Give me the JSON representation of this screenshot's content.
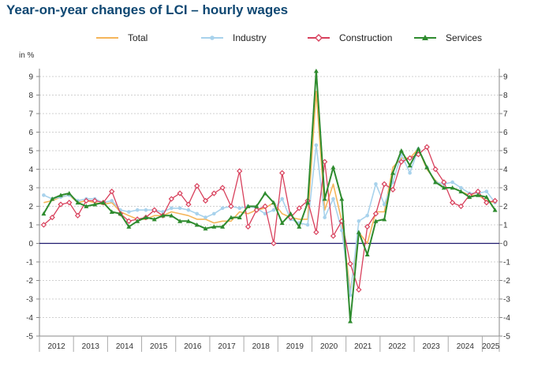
{
  "title": "Year-on-year changes of LCI – hourly wages",
  "colors": {
    "title": "#0e4772",
    "zero_line": "#1f1a6e",
    "grid": "#d0d0d0"
  },
  "chart_data": {
    "type": "line",
    "title": "Year-on-year changes of LCI – hourly wages",
    "ylabel": "in %",
    "ylim": [
      -5,
      9
    ],
    "yticks": [
      "-5",
      "-4",
      "-3",
      "-2",
      "-1",
      "0",
      "1",
      "2",
      "3",
      "4",
      "5",
      "6",
      "7",
      "8",
      "9"
    ],
    "x_start_quarter": "2012Q1",
    "x_end_quarter": "2025Q2",
    "year_labels": [
      "2012",
      "2013",
      "2014",
      "2015",
      "2016",
      "2017",
      "2018",
      "2019",
      "2020",
      "2021",
      "2022",
      "2023",
      "2024",
      "2025"
    ],
    "grid": true,
    "legend_position": "top",
    "series": [
      {
        "name": "Total",
        "color": "#f5b55a",
        "marker": "none",
        "values": [
          2.2,
          2.3,
          2.5,
          2.6,
          2.2,
          2.3,
          2.2,
          2.1,
          2.2,
          1.7,
          1.5,
          1.3,
          1.3,
          1.5,
          1.5,
          1.7,
          1.6,
          1.5,
          1.3,
          1.3,
          1.1,
          1.2,
          1.2,
          1.7,
          1.6,
          1.8,
          1.9,
          2.2,
          1.6,
          1.4,
          1.3,
          1.3,
          8.2,
          1.8,
          3.2,
          1.2,
          -2.6,
          0.6,
          0.0,
          1.7,
          1.7,
          4.1,
          4.6,
          4.6,
          5.1,
          4.0,
          3.4,
          3.0,
          3.0,
          2.8,
          2.6,
          2.6,
          2.3,
          2.2
        ]
      },
      {
        "name": "Industry",
        "color": "#a8d2ec",
        "marker": "circle",
        "values": [
          2.6,
          2.4,
          2.5,
          2.6,
          2.3,
          2.4,
          2.4,
          2.2,
          2.3,
          1.8,
          1.7,
          1.8,
          1.8,
          1.8,
          1.7,
          1.9,
          1.9,
          1.8,
          1.6,
          1.4,
          1.6,
          1.9,
          2.0,
          1.9,
          2.0,
          1.9,
          1.6,
          1.8,
          2.4,
          1.3,
          1.1,
          1.0,
          5.3,
          1.4,
          2.4,
          0.7,
          -2.8,
          1.2,
          1.5,
          3.2,
          2.1,
          3.3,
          4.8,
          3.8,
          5.1,
          4.1,
          3.3,
          3.2,
          3.3,
          3.0,
          2.7,
          2.7,
          2.8,
          2.2
        ]
      },
      {
        "name": "Construction",
        "color": "#d8405c",
        "marker": "diamond",
        "values": [
          1.0,
          1.4,
          2.1,
          2.2,
          1.5,
          2.3,
          2.3,
          2.2,
          2.8,
          1.6,
          1.2,
          1.3,
          1.4,
          1.8,
          1.5,
          2.4,
          2.7,
          2.1,
          3.1,
          2.3,
          2.7,
          3.0,
          2.0,
          3.9,
          0.9,
          1.8,
          2.0,
          0.0,
          3.8,
          1.4,
          1.9,
          2.3,
          0.6,
          4.4,
          0.4,
          1.2,
          -1.1,
          -2.5,
          0.9,
          1.6,
          3.2,
          2.9,
          4.4,
          4.6,
          4.8,
          5.2,
          4.0,
          3.3,
          2.2,
          2.0,
          2.6,
          2.8,
          2.2,
          2.3
        ]
      },
      {
        "name": "Services",
        "color": "#2e8b2e",
        "marker": "triangle",
        "values": [
          1.6,
          2.4,
          2.6,
          2.7,
          2.2,
          2.0,
          2.1,
          2.2,
          1.7,
          1.6,
          0.9,
          1.2,
          1.4,
          1.3,
          1.5,
          1.5,
          1.2,
          1.2,
          1.0,
          0.8,
          0.9,
          0.9,
          1.4,
          1.4,
          2.0,
          2.0,
          2.7,
          2.2,
          1.1,
          1.6,
          0.9,
          2.2,
          9.3,
          2.4,
          4.1,
          2.4,
          -4.2,
          0.6,
          -0.6,
          1.2,
          1.3,
          3.8,
          5.0,
          4.2,
          5.1,
          4.1,
          3.3,
          3.0,
          3.0,
          2.8,
          2.5,
          2.6,
          2.5,
          1.8
        ]
      }
    ]
  }
}
